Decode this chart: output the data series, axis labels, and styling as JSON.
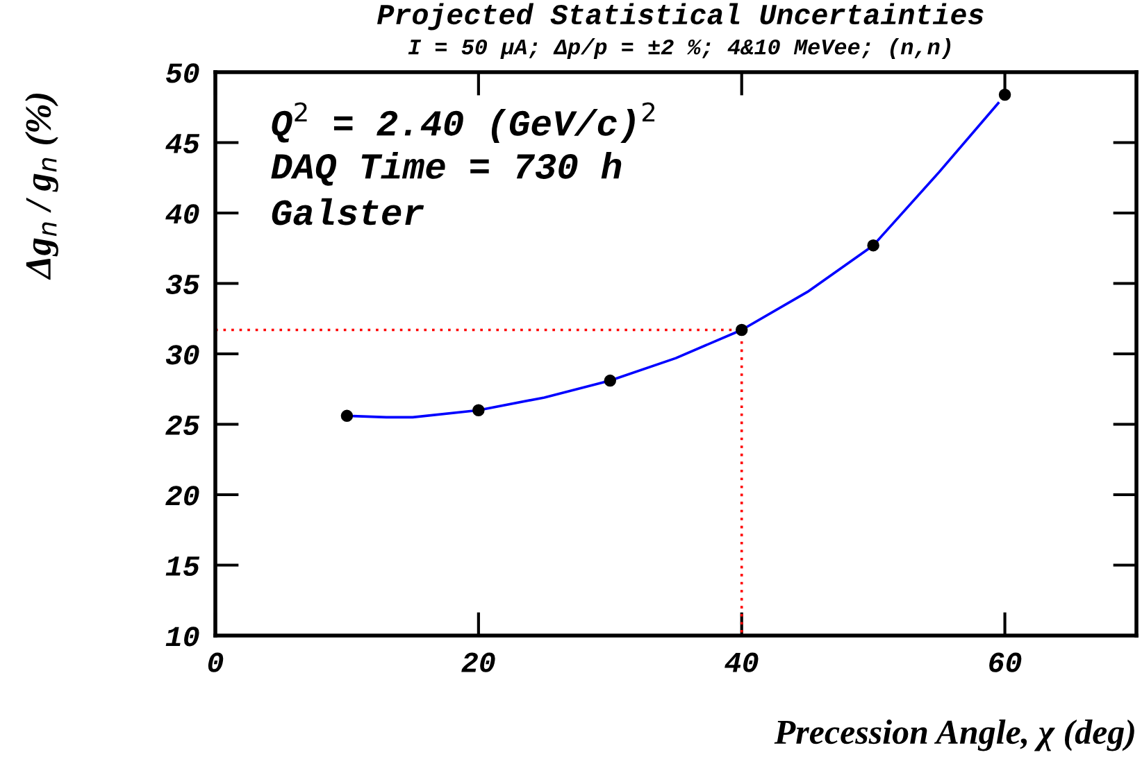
{
  "chart_data": {
    "type": "scatter",
    "title": "Projected Statistical Uncertainties",
    "subtitle": "I = 50 μA; Δp/p = ±2 %; 4&10 MeVee; (n,n)",
    "xlabel": "Precession Angle, χ (deg)",
    "ylabel": "Δg$_{n}$ / g$_{n}$ (%)",
    "annotations": [
      "Q$^{2}$ = 2.40 (GeV/c)$^{2}$",
      "DAQ Time = 730 h",
      "Galster"
    ],
    "xlim": [
      0,
      70
    ],
    "xticks": [
      0,
      20,
      40,
      60
    ],
    "ylim": [
      10,
      50
    ],
    "yticks": [
      10,
      15,
      20,
      25,
      30,
      35,
      40,
      45,
      50
    ],
    "grid": false,
    "legend": false,
    "series": [
      {
        "type": "line",
        "color": "#ff0000",
        "line_style": "dotted",
        "marker": "none",
        "x": [
          0,
          40,
          40
        ],
        "values": [
          31.7,
          31.7,
          10
        ]
      },
      {
        "type": "line",
        "color": "#0000ff",
        "line_style": "solid",
        "marker": "none",
        "x": [
          10,
          13,
          15,
          20,
          25,
          30,
          35,
          40,
          45,
          50,
          55,
          59.5
        ],
        "values": [
          25.6,
          25.5,
          25.5,
          26.0,
          26.9,
          28.1,
          29.7,
          31.7,
          34.4,
          37.7,
          42.9,
          47.8
        ]
      },
      {
        "color": "#000000",
        "marker": "circle",
        "x": [
          10,
          20,
          30,
          40,
          50,
          60
        ],
        "values": [
          25.6,
          26.0,
          28.1,
          31.7,
          37.7,
          48.4
        ]
      }
    ]
  }
}
